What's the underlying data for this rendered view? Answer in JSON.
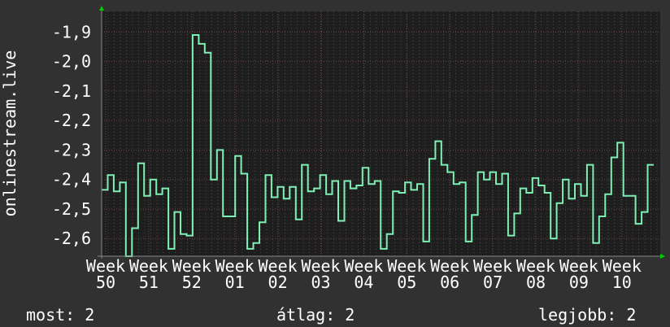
{
  "chart_data": {
    "type": "line",
    "ylabel": "onlinestream.live",
    "ylim": [
      -2.66,
      -1.83
    ],
    "yticks": [
      -1.9,
      -2.0,
      -2.1,
      -2.2,
      -2.3,
      -2.4,
      -2.5,
      -2.6
    ],
    "ytick_labels": [
      "-1,9",
      "-2,0",
      "-2,1",
      "-2,2",
      "-2,3",
      "-2,4",
      "-2,5",
      "-2,6"
    ],
    "xtick_labels": [
      "Week 50",
      "Week 51",
      "Week 52",
      "Week 01",
      "Week 02",
      "Week 03",
      "Week 04",
      "Week 05",
      "Week 06",
      "Week 07",
      "Week 08",
      "Week 09",
      "Week 10"
    ],
    "grid": true,
    "line_color": "#7ff0b4",
    "values": [
      -2.435,
      -2.385,
      -2.44,
      -2.41,
      -2.66,
      -2.565,
      -2.345,
      -2.455,
      -2.4,
      -2.45,
      -2.43,
      -2.635,
      -2.51,
      -2.585,
      -2.59,
      -1.91,
      -1.94,
      -1.97,
      -2.4,
      -2.3,
      -2.525,
      -2.525,
      -2.32,
      -2.38,
      -2.635,
      -2.615,
      -2.545,
      -2.385,
      -2.46,
      -2.425,
      -2.465,
      -2.425,
      -2.535,
      -2.35,
      -2.44,
      -2.43,
      -2.385,
      -2.45,
      -2.405,
      -2.54,
      -2.405,
      -2.43,
      -2.42,
      -2.36,
      -2.415,
      -2.405,
      -2.635,
      -2.585,
      -2.44,
      -2.445,
      -2.41,
      -2.435,
      -2.415,
      -2.61,
      -2.33,
      -2.27,
      -2.35,
      -2.375,
      -2.415,
      -2.41,
      -2.61,
      -2.52,
      -2.375,
      -2.4,
      -2.375,
      -2.415,
      -2.38,
      -2.59,
      -2.515,
      -2.43,
      -2.445,
      -2.395,
      -2.42,
      -2.445,
      -2.6,
      -2.48,
      -2.4,
      -2.465,
      -2.415,
      -2.455,
      -2.35,
      -2.615,
      -2.525,
      -2.45,
      -2.325,
      -2.275,
      -2.455,
      -2.455,
      -2.55,
      -2.51,
      -2.35
    ]
  },
  "footer": {
    "current": "most: 2",
    "average": "átlag: 2",
    "best": "legjobb: 2"
  }
}
